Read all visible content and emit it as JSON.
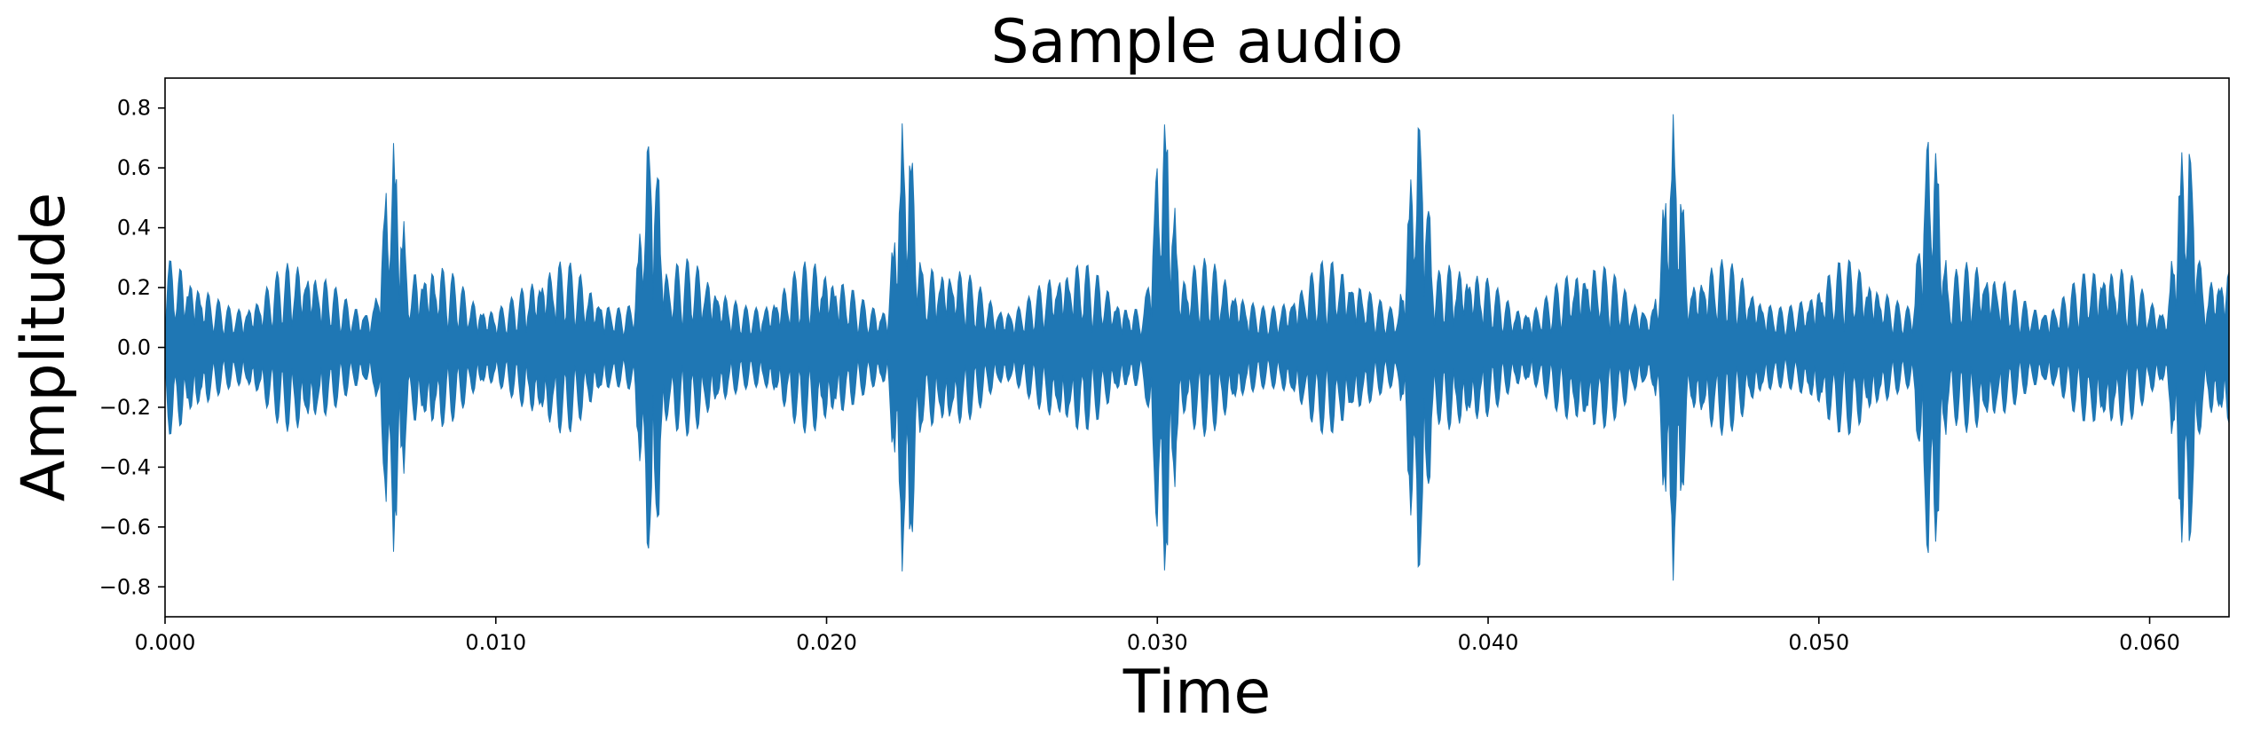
{
  "chart_data": {
    "type": "area",
    "title": "Sample audio",
    "xlabel": "Time",
    "ylabel": "Amplitude",
    "xlim": [
      0.0,
      0.0624
    ],
    "ylim": [
      -0.9,
      0.9
    ],
    "x_ticks": [
      "0.000",
      "0.010",
      "0.020",
      "0.030",
      "0.040",
      "0.050",
      "0.060"
    ],
    "x_tick_values": [
      0.0,
      0.01,
      0.02,
      0.03,
      0.04,
      0.05,
      0.06
    ],
    "y_ticks": [
      "−0.8",
      "−0.6",
      "−0.4",
      "−0.2",
      "0.0",
      "0.2",
      "0.4",
      "0.6",
      "0.8"
    ],
    "y_tick_values": [
      -0.8,
      -0.6,
      -0.4,
      -0.2,
      0.0,
      0.2,
      0.4,
      0.6,
      0.8
    ],
    "grid": false,
    "legend": "none",
    "series": [
      {
        "fill": "symmetric envelope",
        "burst_times": [
          0.0069,
          0.0147,
          0.0224,
          0.0302,
          0.0379,
          0.0456,
          0.0534,
          0.0611
        ],
        "burst_peak_values": [
          0.71,
          0.76,
          0.8,
          0.81,
          0.8,
          0.78,
          0.78,
          0.75
        ],
        "background_peak_range": [
          0.05,
          0.3
        ],
        "color": "#1f77b4"
      }
    ]
  }
}
